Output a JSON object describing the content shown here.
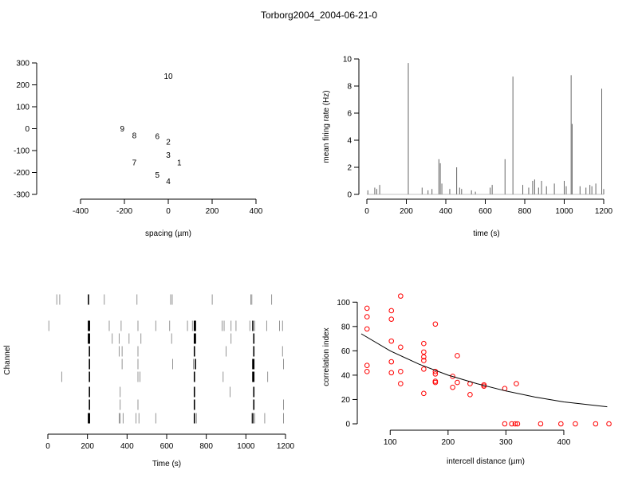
{
  "title": "Torborg2004_2004-06-21-0",
  "chart_data": [
    {
      "id": "electrode-layout",
      "type": "scatter",
      "xlabel": "spacing (µm)",
      "ylabel": "",
      "xlim": [
        -400,
        400
      ],
      "ylim": [
        -300,
        300
      ],
      "xticks": [
        -400,
        -200,
        0,
        200,
        400
      ],
      "yticks": [
        -300,
        -200,
        -100,
        0,
        100,
        200,
        300
      ],
      "points": [
        {
          "label": "10",
          "x": 0,
          "y": 240
        },
        {
          "label": "9",
          "x": -210,
          "y": 0
        },
        {
          "label": "8",
          "x": -155,
          "y": -30
        },
        {
          "label": "6",
          "x": -50,
          "y": -35
        },
        {
          "label": "2",
          "x": 0,
          "y": -60
        },
        {
          "label": "3",
          "x": 0,
          "y": -120
        },
        {
          "label": "7",
          "x": -155,
          "y": -155
        },
        {
          "label": "1",
          "x": 50,
          "y": -155
        },
        {
          "label": "5",
          "x": -50,
          "y": -210
        },
        {
          "label": "4",
          "x": 0,
          "y": -240
        }
      ]
    },
    {
      "id": "mean-firing-rate",
      "type": "line",
      "xlabel": "time (s)",
      "ylabel": "mean firing rate (Hz)",
      "xlim": [
        0,
        1200
      ],
      "ylim": [
        0,
        10
      ],
      "xticks": [
        0,
        200,
        400,
        600,
        800,
        1000,
        1200
      ],
      "yticks": [
        0,
        2,
        4,
        6,
        8,
        10
      ],
      "peaks": [
        {
          "x": 5,
          "y": 0.3
        },
        {
          "x": 40,
          "y": 0.5
        },
        {
          "x": 50,
          "y": 0.4
        },
        {
          "x": 65,
          "y": 0.7
        },
        {
          "x": 210,
          "y": 9.7
        },
        {
          "x": 280,
          "y": 0.5
        },
        {
          "x": 310,
          "y": 0.3
        },
        {
          "x": 330,
          "y": 0.4
        },
        {
          "x": 365,
          "y": 2.6
        },
        {
          "x": 372,
          "y": 2.3
        },
        {
          "x": 380,
          "y": 0.8
        },
        {
          "x": 420,
          "y": 0.4
        },
        {
          "x": 455,
          "y": 2.0
        },
        {
          "x": 470,
          "y": 0.5
        },
        {
          "x": 480,
          "y": 0.4
        },
        {
          "x": 530,
          "y": 0.3
        },
        {
          "x": 550,
          "y": 0.2
        },
        {
          "x": 625,
          "y": 0.5
        },
        {
          "x": 635,
          "y": 0.7
        },
        {
          "x": 700,
          "y": 2.6
        },
        {
          "x": 740,
          "y": 8.7
        },
        {
          "x": 790,
          "y": 0.7
        },
        {
          "x": 820,
          "y": 0.5
        },
        {
          "x": 840,
          "y": 1.0
        },
        {
          "x": 850,
          "y": 1.1
        },
        {
          "x": 870,
          "y": 0.5
        },
        {
          "x": 885,
          "y": 1.0
        },
        {
          "x": 910,
          "y": 0.6
        },
        {
          "x": 950,
          "y": 0.8
        },
        {
          "x": 1000,
          "y": 1.0
        },
        {
          "x": 1010,
          "y": 0.6
        },
        {
          "x": 1035,
          "y": 8.8
        },
        {
          "x": 1040,
          "y": 5.2
        },
        {
          "x": 1080,
          "y": 0.6
        },
        {
          "x": 1110,
          "y": 0.5
        },
        {
          "x": 1130,
          "y": 0.7
        },
        {
          "x": 1140,
          "y": 0.6
        },
        {
          "x": 1160,
          "y": 0.8
        },
        {
          "x": 1190,
          "y": 7.8
        },
        {
          "x": 1200,
          "y": 0.4
        }
      ]
    },
    {
      "id": "spike-raster",
      "type": "raster",
      "xlabel": "Time (s)",
      "ylabel": "Channel",
      "xlim": [
        0,
        1200
      ],
      "xticks": [
        0,
        200,
        400,
        600,
        800,
        1000,
        1200
      ],
      "rows": [
        [
          45,
          60,
          205,
          285,
          450,
          620,
          628,
          830,
          1025,
          1030,
          1130
        ],
        [
          5,
          205,
          210,
          310,
          370,
          455,
          545,
          615,
          705,
          730,
          740,
          745,
          880,
          890,
          925,
          950,
          1020,
          1035,
          1045,
          1105,
          1170,
          1185
        ],
        [
          205,
          210,
          325,
          360,
          410,
          470,
          625,
          740,
          745,
          925,
          1040
        ],
        [
          210,
          360,
          375,
          455,
          740,
          900,
          1040,
          1185
        ],
        [
          210,
          375,
          455,
          630,
          735,
          745,
          1035,
          1040,
          1190
        ],
        [
          70,
          210,
          455,
          465,
          740,
          885,
          1035,
          1040,
          1110
        ],
        [
          210,
          365,
          740,
          920,
          1040
        ],
        [
          210,
          365,
          455,
          740,
          1040,
          1190
        ],
        [
          205,
          210,
          360,
          365,
          380,
          445,
          460,
          545,
          740,
          750,
          1030,
          1035,
          1045,
          1095,
          1190
        ]
      ]
    },
    {
      "id": "correlation-vs-distance",
      "type": "scatter",
      "xlabel": "intercell distance (µm)",
      "ylabel": "correlation index",
      "xlim": [
        50,
        480
      ],
      "ylim": [
        0,
        110
      ],
      "xticks": [
        100,
        200,
        300,
        400
      ],
      "yticks": [
        0,
        20,
        40,
        60,
        80,
        100
      ],
      "series": [
        {
          "points": [
            [
              60,
              95
            ],
            [
              60,
              88
            ],
            [
              60,
              78
            ],
            [
              60,
              48
            ],
            [
              60,
              43
            ],
            [
              102,
              93
            ],
            [
              102,
              86
            ],
            [
              102,
              68
            ],
            [
              102,
              51
            ],
            [
              102,
              42
            ],
            [
              118,
              105
            ],
            [
              118,
              63
            ],
            [
              118,
              43
            ],
            [
              118,
              33
            ],
            [
              158,
              66
            ],
            [
              158,
              59
            ],
            [
              158,
              55
            ],
            [
              158,
              52
            ],
            [
              158,
              45
            ],
            [
              158,
              25
            ],
            [
              178,
              82
            ],
            [
              178,
              43
            ],
            [
              178,
              41
            ],
            [
              178,
              35
            ],
            [
              178,
              34
            ],
            [
              208,
              39
            ],
            [
              208,
              30
            ],
            [
              216,
              56
            ],
            [
              216,
              34
            ],
            [
              238,
              33
            ],
            [
              238,
              24
            ],
            [
              262,
              31
            ],
            [
              262,
              32
            ],
            [
              298,
              29
            ],
            [
              318,
              33
            ],
            [
              298,
              0
            ],
            [
              310,
              0
            ],
            [
              316,
              0
            ],
            [
              320,
              0
            ],
            [
              360,
              0
            ],
            [
              395,
              0
            ],
            [
              420,
              0
            ],
            [
              455,
              0
            ],
            [
              478,
              0
            ]
          ],
          "color": "#ff0000"
        },
        {
          "fit": "exponential",
          "curve": [
            [
              50,
              74
            ],
            [
              100,
              60
            ],
            [
              150,
              49
            ],
            [
              200,
              40
            ],
            [
              250,
              33
            ],
            [
              300,
              27
            ],
            [
              350,
              22
            ],
            [
              400,
              18
            ],
            [
              475,
              14
            ]
          ],
          "color": "#000000"
        }
      ]
    }
  ]
}
